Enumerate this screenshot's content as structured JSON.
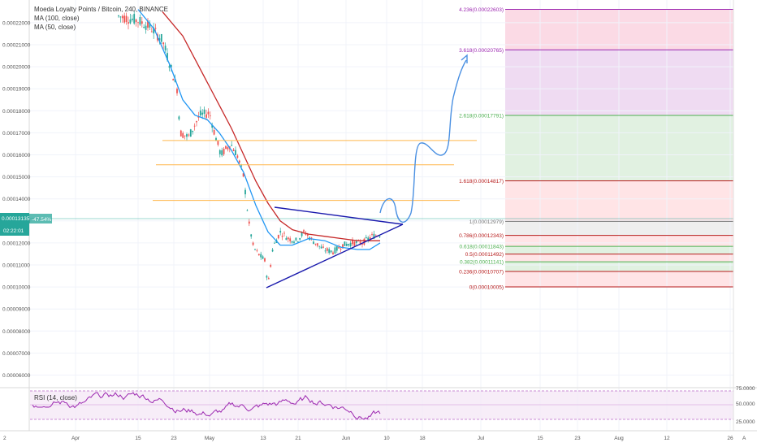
{
  "legend": {
    "title": "Moeda Loyalty Points / Bitcoin, 240, BINANCE",
    "ma100": "MA (100, close)",
    "ma50": "MA (50, close)"
  },
  "price_tag": {
    "value": "0.00013135",
    "change": "-47.54%",
    "timer": "02:22:01"
  },
  "rsi_legend": "RSI (14, close)",
  "colors": {
    "bullish": "#26a69a",
    "bearish": "#ef5350",
    "ma50": "#2196f3",
    "ma100": "#c62828",
    "triangle": "#1a1aad",
    "projection": "#4a90e2",
    "rsi": "#9c27b0"
  },
  "chart_data": {
    "type": "line",
    "y_axis": {
      "ticks": [
        "0.00022000",
        "0.00021000",
        "0.00020000",
        "0.00019000",
        "0.00018000",
        "0.00017000",
        "0.00016000",
        "0.00015000",
        "0.00014000",
        "0.00013000",
        "0.00012000",
        "0.00011000",
        "0.00010000",
        "0.00009000",
        "0.00008000",
        "0.00007000",
        "0.00006000"
      ]
    },
    "x_axis": {
      "ticks": [
        "Apr",
        "15",
        "23",
        "May",
        "13",
        "21",
        "Jun",
        "10",
        "18",
        "Jul",
        "15",
        "23",
        "Aug",
        "12",
        "26"
      ],
      "corner": "2"
    },
    "fib_levels": [
      {
        "label": "4.236(0.00022603)",
        "value": 0.00022603,
        "color": "#9c27b0"
      },
      {
        "label": "3.618(0.00020765)",
        "value": 0.00020765,
        "color": "#9c27b0"
      },
      {
        "label": "2.618(0.00017791)",
        "value": 0.00017791,
        "color": "#4caf50"
      },
      {
        "label": "1.618(0.00014817)",
        "value": 0.00014817,
        "color": "#b71c1c"
      },
      {
        "label": "1(0.00012979)",
        "value": 0.00012979,
        "color": "#777777"
      },
      {
        "label": "0.786(0.00012343)",
        "value": 0.00012343,
        "color": "#b71c1c"
      },
      {
        "label": "0.618(0.00011843)",
        "value": 0.00011843,
        "color": "#4caf50"
      },
      {
        "label": "0.5(0.00011492)",
        "value": 0.00011492,
        "color": "#b71c1c"
      },
      {
        "label": "0.382(0.00011141)",
        "value": 0.00011141,
        "color": "#4caf50"
      },
      {
        "label": "0.236(0.00010707)",
        "value": 0.00010707,
        "color": "#b71c1c"
      },
      {
        "label": "0(0.00010005)",
        "value": 0.00010005,
        "color": "#b71c1c"
      }
    ],
    "rsi_axis": [
      "75.0000",
      "50.0000",
      "25.0000"
    ]
  }
}
